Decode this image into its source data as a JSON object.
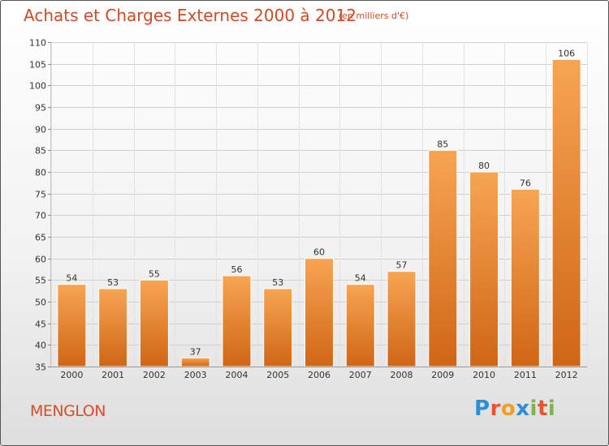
{
  "header": {
    "title": "Achats et Charges Externes 2000 à 2012",
    "subtitle": "(en milliers d'€)"
  },
  "footer": {
    "town": "MENGLON",
    "logo_letters": [
      {
        "ch": "P",
        "color": "#2c8fd6"
      },
      {
        "ch": "r",
        "color": "#e8552a"
      },
      {
        "ch": "o",
        "color": "#f0a020"
      },
      {
        "ch": "x",
        "color": "#2c8fd6"
      },
      {
        "ch": "i",
        "color": "#7ab648"
      },
      {
        "ch": "t",
        "color": "#e8552a"
      },
      {
        "ch": "i",
        "color": "#7ab648"
      }
    ]
  },
  "chart_data": {
    "type": "bar",
    "title": "Achats et Charges Externes 2000 à 2012",
    "subtitle": "(en milliers d'€)",
    "categories": [
      "2000",
      "2001",
      "2002",
      "2003",
      "2004",
      "2005",
      "2006",
      "2007",
      "2008",
      "2009",
      "2010",
      "2011",
      "2012"
    ],
    "values": [
      54,
      53,
      55,
      37,
      56,
      53,
      60,
      54,
      57,
      85,
      80,
      76,
      106
    ],
    "ylim": [
      35,
      110
    ],
    "yticks": [
      35,
      40,
      45,
      50,
      55,
      60,
      65,
      70,
      75,
      80,
      85,
      90,
      95,
      100,
      105,
      110
    ],
    "grid": true,
    "bar_color": "#f08a2c"
  }
}
